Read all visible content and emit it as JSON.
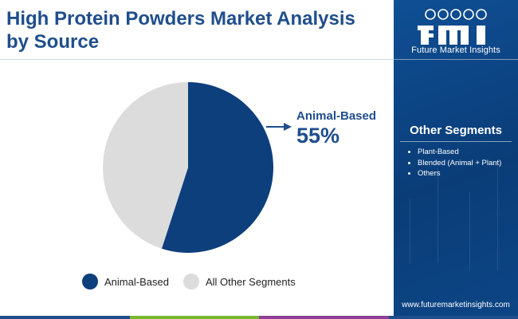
{
  "title": "High Protein Powders Market Analysis by Source",
  "brand": {
    "name": "Future Market Insights",
    "website": "www.futuremarketinsights.com"
  },
  "other_segments": {
    "title": "Other Segments",
    "items": [
      "Plant-Based",
      "Blended (Animal + Plant)",
      "Others"
    ]
  },
  "callout": {
    "label": "Animal-Based",
    "value": "55%"
  },
  "colors": {
    "primary": "#0d3f7c",
    "secondary": "#dcdcdc",
    "title": "#1f4e8c",
    "panel": "#0b4585",
    "footer": [
      "#1f4e8c",
      "#79b730",
      "#8e3f96",
      "#1f4e8c"
    ]
  },
  "chart_data": {
    "type": "pie",
    "title": "High Protein Powders Market Analysis by Source",
    "categories": [
      "Animal-Based",
      "All Other Segments"
    ],
    "values": [
      55,
      45
    ],
    "unit": "%",
    "legend": "bottom",
    "series": [
      {
        "name": "Animal-Based",
        "value": 55,
        "color": "#0d3f7c"
      },
      {
        "name": "All Other Segments",
        "value": 45,
        "color": "#dcdcdc"
      }
    ]
  }
}
